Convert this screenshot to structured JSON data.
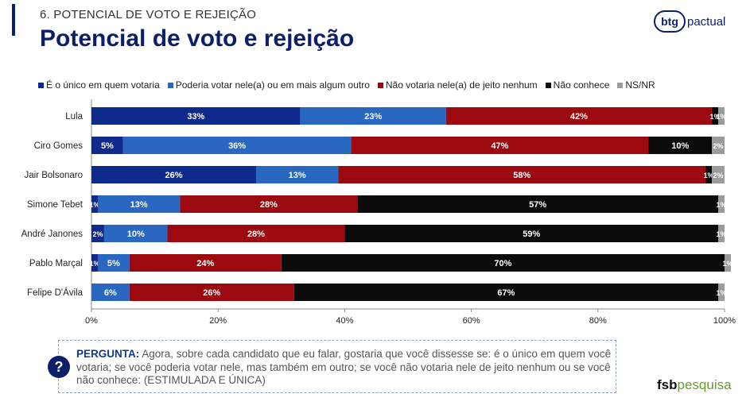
{
  "header": {
    "section": "6. POTENCIAL DE VOTO E REJEIÇÃO",
    "title": "Potencial de voto e rejeição",
    "logo_mark": "btg",
    "logo_text": "pactual"
  },
  "chart_data": {
    "type": "bar",
    "orientation": "horizontal-stacked",
    "categories": [
      "Lula",
      "Ciro Gomes",
      "Jair Bolsonaro",
      "Simone Tebet",
      "André Janones",
      "Pablo Marçal",
      "Felipe D'Ávila"
    ],
    "series": [
      {
        "name": "É o único em quem votaria",
        "color": "#0d2a8c",
        "label_color": "#ffffff",
        "values": [
          33,
          5,
          26,
          1,
          2,
          1,
          null
        ]
      },
      {
        "name": "Poderia votar nele(a) ou em mais algum outro",
        "color": "#2a67c0",
        "label_color": "#ffffff",
        "values": [
          23,
          36,
          13,
          13,
          10,
          5,
          6
        ]
      },
      {
        "name": "Não votaria nele(a) de jeito nenhum",
        "color": "#9c0a0f",
        "label_color": "#ffffff",
        "values": [
          42,
          47,
          58,
          28,
          28,
          24,
          26
        ]
      },
      {
        "name": "Não conhece",
        "color": "#0b0b0b",
        "label_color": "#ffffff",
        "values": [
          1,
          10,
          1,
          57,
          59,
          70,
          67
        ]
      },
      {
        "name": "NS/NR",
        "color": "#9b9b9b",
        "label_color": "#ffffff",
        "values": [
          1,
          2,
          2,
          1,
          1,
          1,
          1
        ]
      }
    ],
    "xlim": [
      0,
      100
    ],
    "xticks": [
      "0%",
      "20%",
      "40%",
      "60%",
      "80%",
      "100%"
    ],
    "legend_position": "top"
  },
  "question": {
    "icon": "question-mark-icon",
    "label": "PERGUNTA:",
    "text": " Agora, sobre cada candidato que eu falar, gostaria que você dissesse se: é o único em quem você votaria; se você poderia votar nele, mas também em outro; se você não votaria nele de jeito nenhum ou se você não conhece: (ESTIMULADA E ÚNICA)"
  },
  "footer": {
    "brand_a": "fsb",
    "brand_b": "pesquisa"
  }
}
